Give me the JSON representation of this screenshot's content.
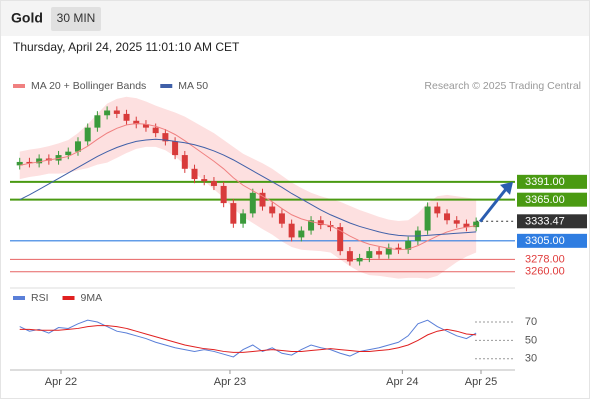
{
  "header": {
    "title": "Gold",
    "timeframe": "30 MIN",
    "datetime": "Thursday, April 24, 2025 11:01:10 AM CET",
    "source": "Research © 2025 Trading Central"
  },
  "chart_data": [
    {
      "type": "candlestick",
      "x": [
        0,
        1,
        2,
        3,
        4,
        5,
        6,
        7,
        8,
        9,
        10,
        11,
        12,
        13,
        14,
        15,
        16,
        17,
        18,
        19,
        20,
        21,
        22,
        23,
        24,
        25,
        26,
        27,
        28,
        29,
        30,
        31,
        32,
        33,
        34,
        35,
        36,
        37,
        38,
        39,
        40,
        41,
        42,
        43,
        44,
        45,
        46,
        47
      ],
      "open": [
        3415,
        3420,
        3418,
        3425,
        3422,
        3430,
        3435,
        3450,
        3470,
        3488,
        3495,
        3490,
        3480,
        3475,
        3470,
        3462,
        3450,
        3430,
        3410,
        3395,
        3392,
        3385,
        3360,
        3330,
        3345,
        3375,
        3355,
        3345,
        3330,
        3310,
        3320,
        3335,
        3328,
        3325,
        3290,
        3275,
        3280,
        3290,
        3285,
        3295,
        3292,
        3305,
        3320,
        3355,
        3345,
        3335,
        3330,
        3325
      ],
      "high": [
        3426,
        3426,
        3431,
        3431,
        3436,
        3441,
        3456,
        3476,
        3494,
        3501,
        3501,
        3496,
        3486,
        3481,
        3476,
        3468,
        3456,
        3436,
        3416,
        3401,
        3398,
        3391,
        3366,
        3351,
        3381,
        3381,
        3361,
        3351,
        3336,
        3326,
        3341,
        3341,
        3334,
        3331,
        3296,
        3286,
        3296,
        3296,
        3301,
        3301,
        3311,
        3326,
        3361,
        3361,
        3351,
        3341,
        3336,
        3339
      ],
      "low": [
        3409,
        3412,
        3412,
        3416,
        3416,
        3424,
        3429,
        3444,
        3464,
        3482,
        3484,
        3474,
        3469,
        3464,
        3456,
        3444,
        3424,
        3404,
        3389,
        3386,
        3379,
        3354,
        3324,
        3324,
        3339,
        3349,
        3339,
        3324,
        3304,
        3304,
        3314,
        3322,
        3319,
        3284,
        3269,
        3269,
        3274,
        3279,
        3279,
        3286,
        3286,
        3299,
        3314,
        3339,
        3329,
        3324,
        3319,
        3319
      ],
      "close": [
        3420,
        3418,
        3425,
        3422,
        3430,
        3435,
        3450,
        3470,
        3488,
        3495,
        3490,
        3480,
        3475,
        3470,
        3462,
        3450,
        3430,
        3410,
        3395,
        3392,
        3385,
        3360,
        3330,
        3345,
        3375,
        3355,
        3345,
        3330,
        3310,
        3320,
        3335,
        3328,
        3325,
        3290,
        3275,
        3280,
        3290,
        3285,
        3295,
        3292,
        3305,
        3320,
        3355,
        3345,
        3335,
        3330,
        3325,
        3333
      ],
      "up_color": "#3b9a3b",
      "down_color": "#d83b3b",
      "band_color": "#fde0e0",
      "series": [
        {
          "name": "MA 20 + Bollinger Bands",
          "color": "#f08080",
          "values": [
            3415,
            3418,
            3420,
            3423,
            3425,
            3428,
            3435,
            3443,
            3453,
            3462,
            3469,
            3474,
            3476,
            3475,
            3472,
            3467,
            3460,
            3451,
            3441,
            3431,
            3421,
            3410,
            3397,
            3386,
            3378,
            3370,
            3362,
            3352,
            3343,
            3337,
            3333,
            3330,
            3327,
            3320,
            3312,
            3305,
            3300,
            3297,
            3294,
            3292,
            3293,
            3298,
            3305,
            3312,
            3318,
            3322,
            3325,
            3327
          ],
          "upper": [
            3435,
            3438,
            3440,
            3443,
            3447,
            3452,
            3462,
            3475,
            3490,
            3505,
            3512,
            3515,
            3513,
            3508,
            3502,
            3497,
            3492,
            3486,
            3478,
            3470,
            3462,
            3452,
            3442,
            3432,
            3425,
            3418,
            3410,
            3400,
            3390,
            3382,
            3375,
            3370,
            3366,
            3362,
            3356,
            3350,
            3345,
            3340,
            3336,
            3334,
            3335,
            3345,
            3360,
            3370,
            3372,
            3370,
            3368,
            3366
          ],
          "lower": [
            3395,
            3398,
            3400,
            3403,
            3403,
            3404,
            3408,
            3411,
            3416,
            3419,
            3426,
            3433,
            3439,
            3442,
            3442,
            3437,
            3428,
            3416,
            3404,
            3392,
            3380,
            3368,
            3352,
            3340,
            3331,
            3322,
            3314,
            3304,
            3296,
            3292,
            3291,
            3290,
            3288,
            3278,
            3268,
            3260,
            3255,
            3254,
            3252,
            3250,
            3251,
            3251,
            3250,
            3254,
            3264,
            3274,
            3282,
            3288
          ]
        },
        {
          "name": "MA 50",
          "color": "#4060a8",
          "values": [
            3365,
            3372,
            3380,
            3388,
            3396,
            3404,
            3412,
            3420,
            3428,
            3435,
            3441,
            3446,
            3450,
            3452,
            3453,
            3452,
            3450,
            3448,
            3445,
            3441,
            3436,
            3430,
            3423,
            3415,
            3407,
            3399,
            3391,
            3383,
            3374,
            3366,
            3358,
            3350,
            3343,
            3337,
            3331,
            3326,
            3322,
            3318,
            3315,
            3313,
            3312,
            3312,
            3313,
            3314,
            3315,
            3316,
            3317,
            3318
          ]
        }
      ],
      "levels": [
        {
          "value": 3391,
          "label": "3391.00",
          "color": "#4a9a12",
          "style": "box"
        },
        {
          "value": 3365,
          "label": "3365.00",
          "color": "#4a9a12",
          "style": "box"
        },
        {
          "value": 3333.47,
          "label": "3333.47",
          "color": "#333333",
          "style": "box"
        },
        {
          "value": 3305,
          "label": "3305.00",
          "color": "#2f7de1",
          "style": "box"
        },
        {
          "value": 3278,
          "label": "3278.00",
          "color": "#e03c3c",
          "style": "text"
        },
        {
          "value": 3260,
          "label": "3260.00",
          "color": "#e03c3c",
          "style": "text"
        }
      ],
      "arrow_color": "#2a5db0",
      "xlim": [
        -1,
        51
      ],
      "ylim": [
        3245,
        3554
      ]
    },
    {
      "type": "line",
      "x": [
        0,
        1,
        2,
        3,
        4,
        5,
        6,
        7,
        8,
        9,
        10,
        11,
        12,
        13,
        14,
        15,
        16,
        17,
        18,
        19,
        20,
        21,
        22,
        23,
        24,
        25,
        26,
        27,
        28,
        29,
        30,
        31,
        32,
        33,
        34,
        35,
        36,
        37,
        38,
        39,
        40,
        41,
        42,
        43,
        44,
        45,
        46,
        47
      ],
      "series": [
        {
          "name": "RSI",
          "color": "#5a7fd8",
          "values": [
            65,
            60,
            62,
            58,
            64,
            63,
            68,
            72,
            70,
            65,
            60,
            58,
            55,
            52,
            48,
            45,
            42,
            40,
            38,
            40,
            38,
            35,
            32,
            40,
            45,
            38,
            42,
            36,
            34,
            40,
            45,
            42,
            40,
            36,
            33,
            38,
            40,
            42,
            45,
            48,
            55,
            68,
            72,
            65,
            60,
            55,
            52,
            58
          ]
        },
        {
          "name": "9MA",
          "color": "#e02020",
          "values": [
            62,
            62,
            61,
            61,
            61,
            62,
            63,
            65,
            66,
            66,
            65,
            63,
            60,
            57,
            54,
            51,
            48,
            45,
            43,
            41,
            40,
            38,
            37,
            37,
            38,
            39,
            40,
            39,
            38,
            38,
            39,
            40,
            41,
            40,
            39,
            38,
            38,
            39,
            40,
            42,
            45,
            50,
            56,
            60,
            62,
            60,
            57,
            56
          ]
        }
      ],
      "xlim": [
        -1,
        51
      ],
      "ylim": [
        20,
        95
      ],
      "yticks": [
        30,
        50,
        70
      ],
      "xticks": [
        {
          "value": 4.25,
          "label": "Apr 22"
        },
        {
          "value": 21.65,
          "label": "Apr 23"
        },
        {
          "value": 39.4,
          "label": "Apr 24"
        },
        {
          "value": 47.5,
          "label": "Apr 25"
        }
      ]
    }
  ]
}
